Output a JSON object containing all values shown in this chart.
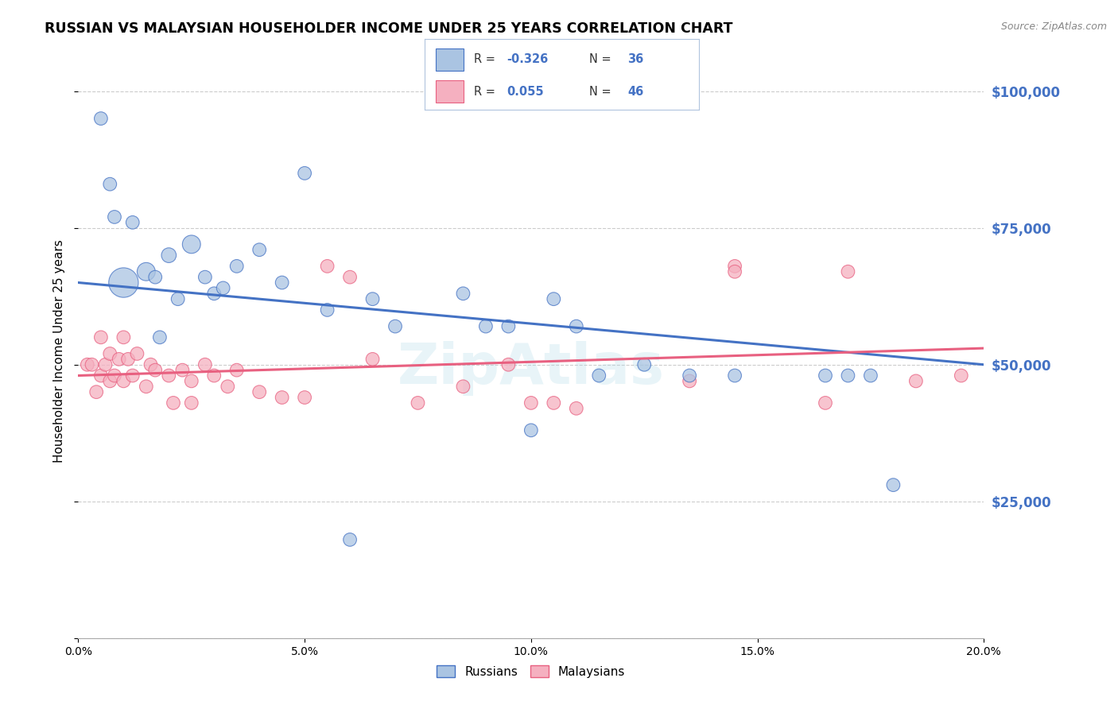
{
  "title": "RUSSIAN VS MALAYSIAN HOUSEHOLDER INCOME UNDER 25 YEARS CORRELATION CHART",
  "source": "Source: ZipAtlas.com",
  "ylabel": "Householder Income Under 25 years",
  "legend_label1": "Russians",
  "legend_label2": "Malaysians",
  "legend_r1_label": "R = ",
  "legend_r1_val": "-0.326",
  "legend_n1_label": "N = ",
  "legend_n1_val": "36",
  "legend_r2_label": "R = ",
  "legend_r2_val": "0.055",
  "legend_n2_label": "N = ",
  "legend_n2_val": "46",
  "yticks": [
    0,
    25000,
    50000,
    75000,
    100000
  ],
  "ytick_labels": [
    "",
    "$25,000",
    "$50,000",
    "$75,000",
    "$100,000"
  ],
  "xticks": [
    0,
    5,
    10,
    15,
    20
  ],
  "xtick_labels": [
    "0.0%",
    "5.0%",
    "10.0%",
    "15.0%",
    "20.0%"
  ],
  "color_russian": "#aac4e2",
  "color_malaysian": "#f5b0c0",
  "color_russian_line": "#4472c4",
  "color_malaysian_line": "#e86080",
  "color_ytick": "#4472c4",
  "watermark": "ZipAtlas",
  "russians_x": [
    0.5,
    0.7,
    0.8,
    1.0,
    1.2,
    1.5,
    1.7,
    2.0,
    2.2,
    2.5,
    2.8,
    3.0,
    3.2,
    3.5,
    4.0,
    4.5,
    5.5,
    6.5,
    7.0,
    8.5,
    9.5,
    10.5,
    11.0,
    11.5,
    12.5,
    13.5,
    14.5,
    16.5,
    17.0,
    17.5,
    18.0,
    9.0,
    1.8,
    5.0,
    10.0,
    6.0
  ],
  "russians_y": [
    95000,
    83000,
    77000,
    65000,
    76000,
    67000,
    66000,
    70000,
    62000,
    72000,
    66000,
    63000,
    64000,
    68000,
    71000,
    65000,
    60000,
    62000,
    57000,
    63000,
    57000,
    62000,
    57000,
    48000,
    50000,
    48000,
    48000,
    48000,
    48000,
    48000,
    28000,
    57000,
    55000,
    85000,
    38000,
    18000
  ],
  "russians_size": [
    80,
    80,
    80,
    400,
    80,
    150,
    80,
    100,
    80,
    150,
    80,
    80,
    80,
    80,
    80,
    80,
    80,
    80,
    80,
    80,
    80,
    80,
    80,
    80,
    80,
    80,
    80,
    80,
    80,
    80,
    80,
    80,
    80,
    80,
    80,
    80
  ],
  "malaysians_x": [
    0.2,
    0.3,
    0.4,
    0.5,
    0.5,
    0.6,
    0.7,
    0.7,
    0.8,
    0.9,
    1.0,
    1.0,
    1.1,
    1.2,
    1.3,
    1.5,
    1.6,
    1.7,
    2.0,
    2.1,
    2.3,
    2.5,
    2.5,
    2.8,
    3.0,
    3.3,
    3.5,
    4.0,
    4.5,
    5.0,
    5.5,
    6.0,
    6.5,
    7.5,
    8.5,
    9.5,
    10.0,
    10.5,
    11.0,
    13.5,
    14.5,
    14.5,
    16.5,
    17.0,
    18.5,
    19.5
  ],
  "malaysians_y": [
    50000,
    50000,
    45000,
    55000,
    48000,
    50000,
    52000,
    47000,
    48000,
    51000,
    55000,
    47000,
    51000,
    48000,
    52000,
    46000,
    50000,
    49000,
    48000,
    43000,
    49000,
    47000,
    43000,
    50000,
    48000,
    46000,
    49000,
    45000,
    44000,
    44000,
    68000,
    66000,
    51000,
    43000,
    46000,
    50000,
    43000,
    43000,
    42000,
    47000,
    68000,
    67000,
    43000,
    67000,
    47000,
    48000
  ],
  "malaysians_size": [
    80,
    80,
    80,
    80,
    80,
    80,
    80,
    80,
    80,
    80,
    80,
    80,
    80,
    80,
    80,
    80,
    80,
    80,
    80,
    80,
    80,
    80,
    80,
    80,
    80,
    80,
    80,
    80,
    80,
    80,
    80,
    80,
    80,
    80,
    80,
    80,
    80,
    80,
    80,
    80,
    80,
    80,
    80,
    80,
    80,
    80
  ],
  "xlim": [
    0,
    20
  ],
  "ylim": [
    0,
    105000
  ],
  "background_color": "#ffffff",
  "grid_color": "#cccccc"
}
